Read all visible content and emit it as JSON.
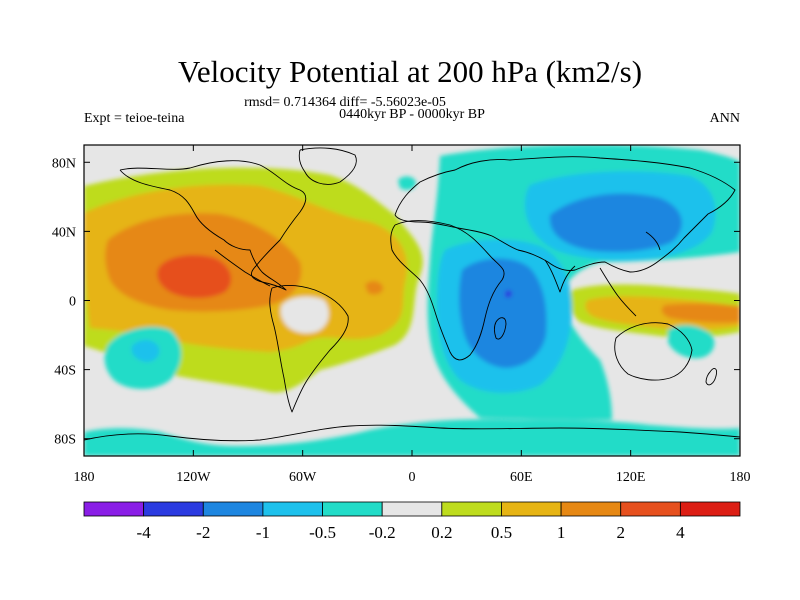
{
  "chart_data": {
    "type": "heatmap",
    "title": "Velocity Potential at 200 hPa (km2/s)",
    "stats_text": "rmsd= 0.714364 diff= -5.56023e-05",
    "left_string": "Expt = teioe-teina",
    "center_string": "0440kyr BP - 0000kyr BP",
    "right_string": "ANN",
    "x_ticks": [
      "180",
      "120W",
      "60W",
      "0",
      "60E",
      "120E",
      "180"
    ],
    "y_ticks": [
      "80N",
      "40N",
      "0",
      "40S",
      "80S"
    ],
    "xlim": [
      -180,
      180
    ],
    "ylim": [
      -90,
      90
    ],
    "colorbar": {
      "levels": [
        "-4",
        "-2",
        "-1",
        "-0.5",
        "-0.2",
        "0.2",
        "0.5",
        "1",
        "2",
        "4"
      ],
      "colors": [
        "#8a1ee6",
        "#2b3be0",
        "#1e86e0",
        "#1ec1ec",
        "#22dcc8",
        "#e6e6e6",
        "#bedc1e",
        "#e6b414",
        "#e68814",
        "#e6501e",
        "#dc1e14"
      ]
    },
    "features": [
      {
        "name": "tropical-east-pacific-maximum",
        "center": [
          -123,
          12
        ],
        "value": 4
      },
      {
        "name": "east-pacific-atlantic-positive-band",
        "center": [
          -95,
          20
        ],
        "value": 2
      },
      {
        "name": "central-atlantic-positive",
        "center": [
          -30,
          10
        ],
        "value": 1
      },
      {
        "name": "africa-indian-ocean-minimum",
        "center": [
          55,
          0
        ],
        "value": -2
      },
      {
        "name": "east-asia-minimum",
        "center": [
          95,
          38
        ],
        "value": -2
      },
      {
        "name": "maritime-continent-positive",
        "center": [
          145,
          -5
        ],
        "value": 1
      },
      {
        "name": "south-pacific-negative",
        "center": [
          -148,
          -25
        ],
        "value": -0.5
      },
      {
        "name": "antarctic-margin-negative",
        "center": [
          80,
          -78
        ],
        "value": -0.5
      }
    ]
  }
}
